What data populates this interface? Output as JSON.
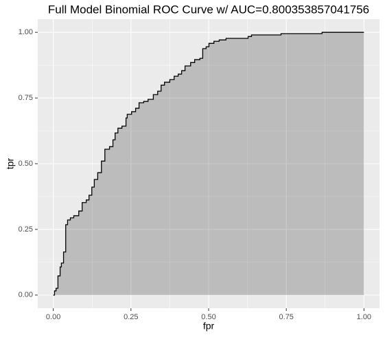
{
  "chart_data": {
    "type": "line",
    "title": "Full Model Binomial ROC Curve w/ AUC=0.800353857041756",
    "x_label": "fpr",
    "y_label": "tpr",
    "x": [
      0,
      0.004,
      0.004,
      0.009,
      0.009,
      0.015,
      0.015,
      0.022,
      0.022,
      0.026,
      0.026,
      0.033,
      0.033,
      0.04,
      0.04,
      0.046,
      0.046,
      0.055,
      0.055,
      0.066,
      0.066,
      0.082,
      0.082,
      0.093,
      0.093,
      0.106,
      0.106,
      0.115,
      0.115,
      0.124,
      0.124,
      0.132,
      0.132,
      0.143,
      0.143,
      0.155,
      0.155,
      0.166,
      0.166,
      0.181,
      0.181,
      0.192,
      0.192,
      0.199,
      0.199,
      0.208,
      0.208,
      0.221,
      0.221,
      0.234,
      0.234,
      0.238,
      0.238,
      0.252,
      0.252,
      0.265,
      0.265,
      0.276,
      0.276,
      0.291,
      0.291,
      0.305,
      0.305,
      0.322,
      0.322,
      0.336,
      0.336,
      0.347,
      0.347,
      0.358,
      0.358,
      0.375,
      0.375,
      0.389,
      0.389,
      0.402,
      0.402,
      0.413,
      0.413,
      0.424,
      0.424,
      0.442,
      0.442,
      0.455,
      0.455,
      0.472,
      0.472,
      0.481,
      0.481,
      0.492,
      0.492,
      0.501,
      0.501,
      0.517,
      0.517,
      0.534,
      0.534,
      0.556,
      0.556,
      0.627,
      0.627,
      0.638,
      0.638,
      0.733,
      0.733,
      0.865,
      0.865,
      1.0
    ],
    "values": [
      0,
      0,
      0.016,
      0.016,
      0.026,
      0.026,
      0.073,
      0.073,
      0.107,
      0.107,
      0.122,
      0.122,
      0.164,
      0.164,
      0.268,
      0.268,
      0.286,
      0.286,
      0.294,
      0.294,
      0.302,
      0.302,
      0.32,
      0.32,
      0.352,
      0.352,
      0.362,
      0.362,
      0.38,
      0.38,
      0.411,
      0.411,
      0.44,
      0.44,
      0.466,
      0.466,
      0.51,
      0.51,
      0.555,
      0.555,
      0.565,
      0.565,
      0.591,
      0.591,
      0.617,
      0.617,
      0.635,
      0.635,
      0.643,
      0.643,
      0.674,
      0.674,
      0.688,
      0.688,
      0.698,
      0.698,
      0.711,
      0.711,
      0.732,
      0.732,
      0.737,
      0.737,
      0.745,
      0.745,
      0.763,
      0.763,
      0.776,
      0.776,
      0.799,
      0.799,
      0.81,
      0.81,
      0.82,
      0.82,
      0.833,
      0.833,
      0.841,
      0.841,
      0.854,
      0.854,
      0.872,
      0.872,
      0.885,
      0.885,
      0.896,
      0.896,
      0.901,
      0.901,
      0.938,
      0.938,
      0.945,
      0.945,
      0.958,
      0.958,
      0.966,
      0.966,
      0.971,
      0.971,
      0.977,
      0.977,
      0.984,
      0.984,
      0.99,
      0.99,
      0.995,
      0.995,
      1.0,
      1.0
    ],
    "color": "#000000",
    "fill": "#000000",
    "fill_opacity": 0.2,
    "xlim": [
      -0.05,
      1.05
    ],
    "ylim": [
      -0.05,
      1.05
    ],
    "xticks": [
      {
        "value": 0,
        "label": "0.00"
      },
      {
        "value": 0.25,
        "label": "0.25"
      },
      {
        "value": 0.5,
        "label": "0.50"
      },
      {
        "value": 0.75,
        "label": "0.75"
      },
      {
        "value": 1,
        "label": "1.00"
      }
    ],
    "yticks": [
      {
        "value": 0,
        "label": "0.00"
      },
      {
        "value": 0.25,
        "label": "0.25"
      },
      {
        "value": 0.5,
        "label": "0.50"
      },
      {
        "value": 0.75,
        "label": "0.75"
      },
      {
        "value": 1,
        "label": "1.00"
      }
    ],
    "grid": true
  }
}
